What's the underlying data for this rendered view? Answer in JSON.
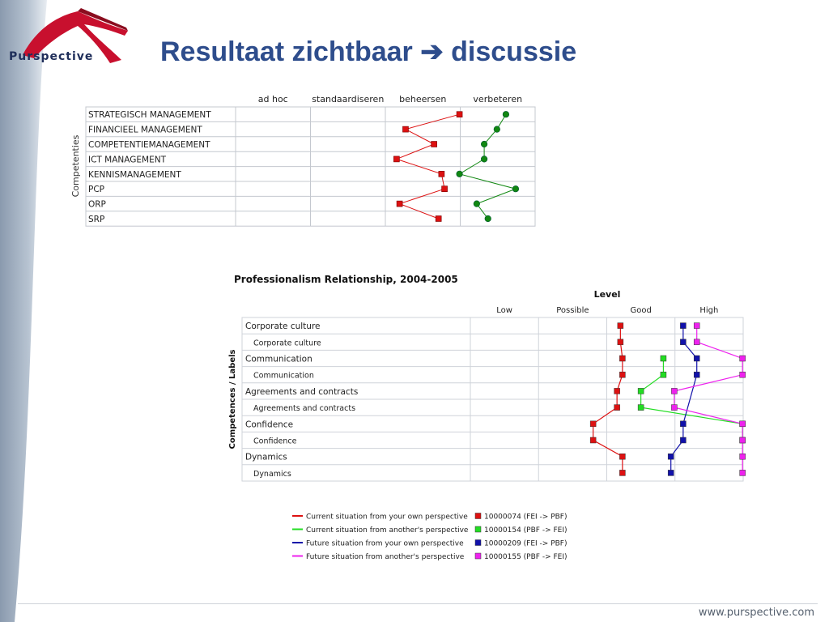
{
  "header": {
    "brand": "Purspective",
    "title": "Resultaat zichtbaar ➔ discussie"
  },
  "footer": {
    "url": "www.purspective.com"
  },
  "colors": {
    "title": "#2e4d8c",
    "brand_red": "#c8102e",
    "red": "#dd1111",
    "green": "#118811",
    "lime": "#22dd22",
    "blue": "#1111aa",
    "magenta": "#ee22ee"
  },
  "chart_data": [
    {
      "type": "line",
      "title": "",
      "ylabel": "Competenties",
      "columns": [
        "ad hoc",
        "standaardiseren",
        "beheersen",
        "verbeteren"
      ],
      "rows": [
        "STRATEGISCH MANAGEMENT",
        "FINANCIEEL MANAGEMENT",
        "COMPETENTIEMANAGEMENT",
        "ICT MANAGEMENT",
        "KENNISMANAGEMENT",
        "PCP",
        "ORP",
        "SRP"
      ],
      "xlim": [
        0,
        4
      ],
      "grid": true,
      "series": [
        {
          "marker": "square",
          "color": "#dd1111",
          "values": [
            2.99,
            2.27,
            2.65,
            2.15,
            2.75,
            2.79,
            2.19,
            2.71
          ]
        },
        {
          "marker": "circle",
          "color": "#118811",
          "values": [
            3.61,
            3.49,
            3.32,
            3.32,
            2.99,
            3.74,
            3.22,
            3.37
          ]
        }
      ]
    },
    {
      "type": "line",
      "title": "Professionalism Relationship, 2004-2005",
      "xlabel": "Level",
      "ylabel": "Competences / Labels",
      "columns": [
        "Low",
        "Possible",
        "Good",
        "High"
      ],
      "rows": [
        "Corporate culture",
        "Corporate culture",
        "Communication",
        "Communication",
        "Agreements and contracts",
        "Agreements and contracts",
        "Confidence",
        "Confidence",
        "Dynamics",
        "Dynamics"
      ],
      "row_indent": [
        false,
        true,
        false,
        true,
        false,
        true,
        false,
        true,
        false,
        true
      ],
      "xlim": [
        0,
        4
      ],
      "grid": true,
      "legend_lines": [
        {
          "label": "Current situation from your own perspective",
          "color": "#dd1111"
        },
        {
          "label": "Current situation from another's perspective",
          "color": "#22dd22"
        },
        {
          "label": "Future situation from your own perspective",
          "color": "#1111aa"
        },
        {
          "label": "Future situation from another's perspective",
          "color": "#ee22ee"
        }
      ],
      "legend_markers": [
        {
          "label": "10000074 (FEI -> PBF)",
          "color": "#dd1111"
        },
        {
          "label": "10000154 (PBF -> FEI)",
          "color": "#22dd22"
        },
        {
          "label": "10000209 (FEI -> PBF)",
          "color": "#1111aa"
        },
        {
          "label": "10000155 (PBF -> FEI)",
          "color": "#ee22ee"
        }
      ],
      "series": [
        {
          "color": "#dd1111",
          "values": [
            2.2,
            2.2,
            2.23,
            2.23,
            2.15,
            2.15,
            1.8,
            1.8,
            2.23,
            2.23
          ],
          "rows": [
            0,
            1,
            2,
            3,
            4,
            5,
            6,
            7,
            8,
            9
          ]
        },
        {
          "color": "#22dd22",
          "values": [
            2.83,
            2.83,
            2.5,
            2.5,
            3.99,
            3.99
          ],
          "rows": [
            2,
            3,
            4,
            5,
            6,
            7
          ]
        },
        {
          "color": "#1111aa",
          "values": [
            3.12,
            3.12,
            3.32,
            3.32,
            3.12,
            3.12,
            2.94,
            2.94
          ],
          "rows": [
            0,
            1,
            2,
            3,
            6,
            7,
            8,
            9
          ]
        },
        {
          "color": "#ee22ee",
          "values": [
            3.32,
            3.32,
            3.99,
            3.99,
            2.99,
            2.99,
            3.99,
            3.99,
            3.99,
            3.99
          ],
          "rows": [
            0,
            1,
            2,
            3,
            4,
            5,
            6,
            7,
            8,
            9
          ]
        }
      ]
    }
  ]
}
